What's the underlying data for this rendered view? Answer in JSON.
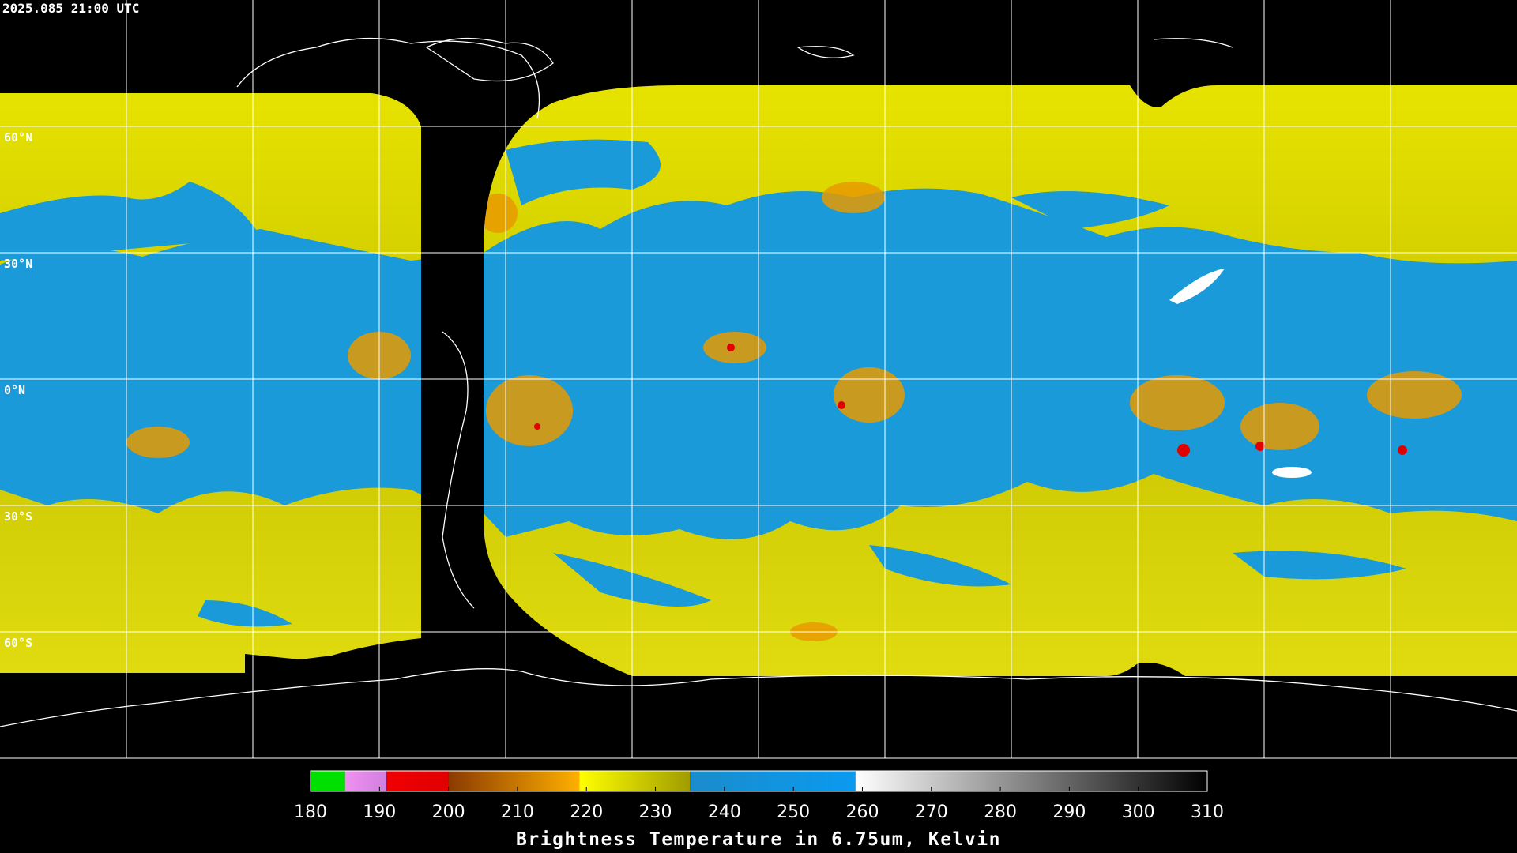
{
  "header": {
    "timestamp": "2025.085 21:00 UTC"
  },
  "map": {
    "lat_labels": [
      "60°N",
      "30°N",
      "0°N",
      "30°S",
      "60°S"
    ]
  },
  "colorbar": {
    "range": [
      180,
      310
    ],
    "ticks": [
      180,
      190,
      200,
      210,
      220,
      230,
      240,
      250,
      260,
      270,
      280,
      290,
      300,
      310
    ],
    "segments": [
      {
        "from": 180,
        "to": 185,
        "colors": [
          "#00e000",
          "#00e000"
        ]
      },
      {
        "from": 185,
        "to": 191,
        "colors": [
          "#f090f0",
          "#d080e0"
        ]
      },
      {
        "from": 191,
        "to": 200,
        "colors": [
          "#f00000",
          "#e00000"
        ]
      },
      {
        "from": 200,
        "to": 219,
        "colors": [
          "#8a3a00",
          "#ffb000"
        ]
      },
      {
        "from": 219,
        "to": 235,
        "colors": [
          "#ffff00",
          "#a09c00"
        ]
      },
      {
        "from": 235,
        "to": 259,
        "colors": [
          "#1a8ccc",
          "#0a9af0"
        ]
      },
      {
        "from": 259,
        "to": 310,
        "colors": [
          "#ffffff",
          "#000000"
        ]
      }
    ],
    "label": "Brightness Temperature in 6.75um, Kelvin"
  }
}
